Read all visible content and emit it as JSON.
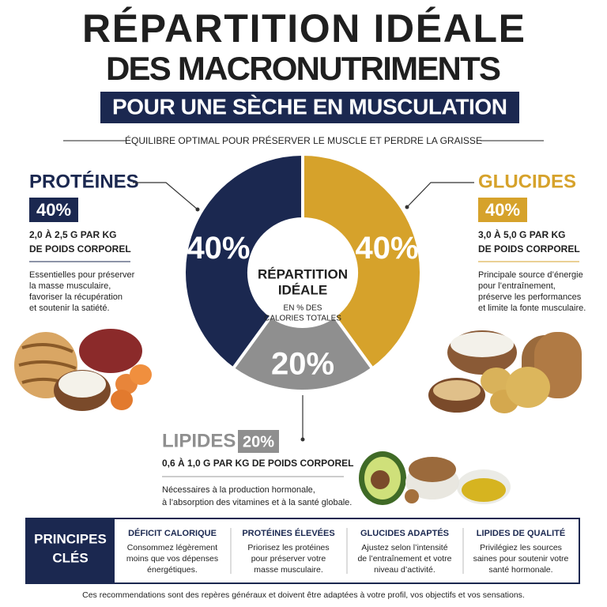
{
  "header": {
    "title_lines": [
      "RÉPARTITION IDÉALE",
      "DES MACRONUTRIMENTS"
    ],
    "banner": "POUR UNE SÈCHE EN MUSCULATION",
    "tagline": "ÉQUILIBRE OPTIMAL POUR PRÉSERVER LE MUSCLE ET PERDRE LA GRAISSE"
  },
  "chart_data": {
    "type": "donut",
    "categories": [
      "GLUCIDES",
      "LIPIDES",
      "PROTÉINES"
    ],
    "values": [
      40,
      20,
      40
    ],
    "value_labels": [
      "40%",
      "20%",
      "40%"
    ],
    "colors": [
      "#d6a22b",
      "#8f8f8f",
      "#1b2850"
    ],
    "center_title": [
      "RÉPARTITION",
      "IDÉALE"
    ],
    "center_subtitle": [
      "EN % DES",
      "CALORIES TOTALES"
    ]
  },
  "details": [
    {
      "amount": [
        "3,0 À 5,0 G PAR KG",
        "DE POIDS CORPOREL"
      ],
      "description": [
        "Principale source d’énergie",
        "pour l’entraînement,",
        "préserve les performances",
        "et limite la fonte musculaire."
      ]
    },
    {
      "amount": [
        "0,6 À 1,0 G PAR KG DE POIDS CORPOREL"
      ],
      "description": [
        "Nécessaires à la production hormonale,",
        "à l’absorption des vitamines et à la santé globale."
      ]
    },
    {
      "amount": [
        "2,0 À 2,5 G PAR KG",
        "DE POIDS CORPOREL"
      ],
      "description": [
        "Essentielles pour préserver",
        "la masse musculaire,",
        "favoriser la récupération",
        "et soutenir la satiété."
      ]
    }
  ],
  "principles": {
    "title": [
      "PRINCIPES",
      "CLÉS"
    ],
    "items": [
      {
        "title": "DÉFICIT CALORIQUE",
        "lines": [
          "Consommez légèrement",
          "moins que vos dépenses",
          "énergétiques."
        ]
      },
      {
        "title": "PROTÉINES ÉLEVÉES",
        "lines": [
          "Priorisez les protéines",
          "pour préserver votre",
          "masse musculaire."
        ]
      },
      {
        "title": "GLUCIDES ADAPTÉS",
        "lines": [
          "Ajustez selon l’intensité",
          "de l’entraînement et votre",
          "niveau d’activité."
        ]
      },
      {
        "title": "LIPIDES DE QUALITÉ",
        "lines": [
          "Privilégiez les sources",
          "saines pour soutenir votre",
          "santé hormonale."
        ]
      }
    ]
  },
  "footer": "Ces recommendations sont des repères généraux et doivent être adaptées à votre profil, vos objectifs et vos sensations."
}
